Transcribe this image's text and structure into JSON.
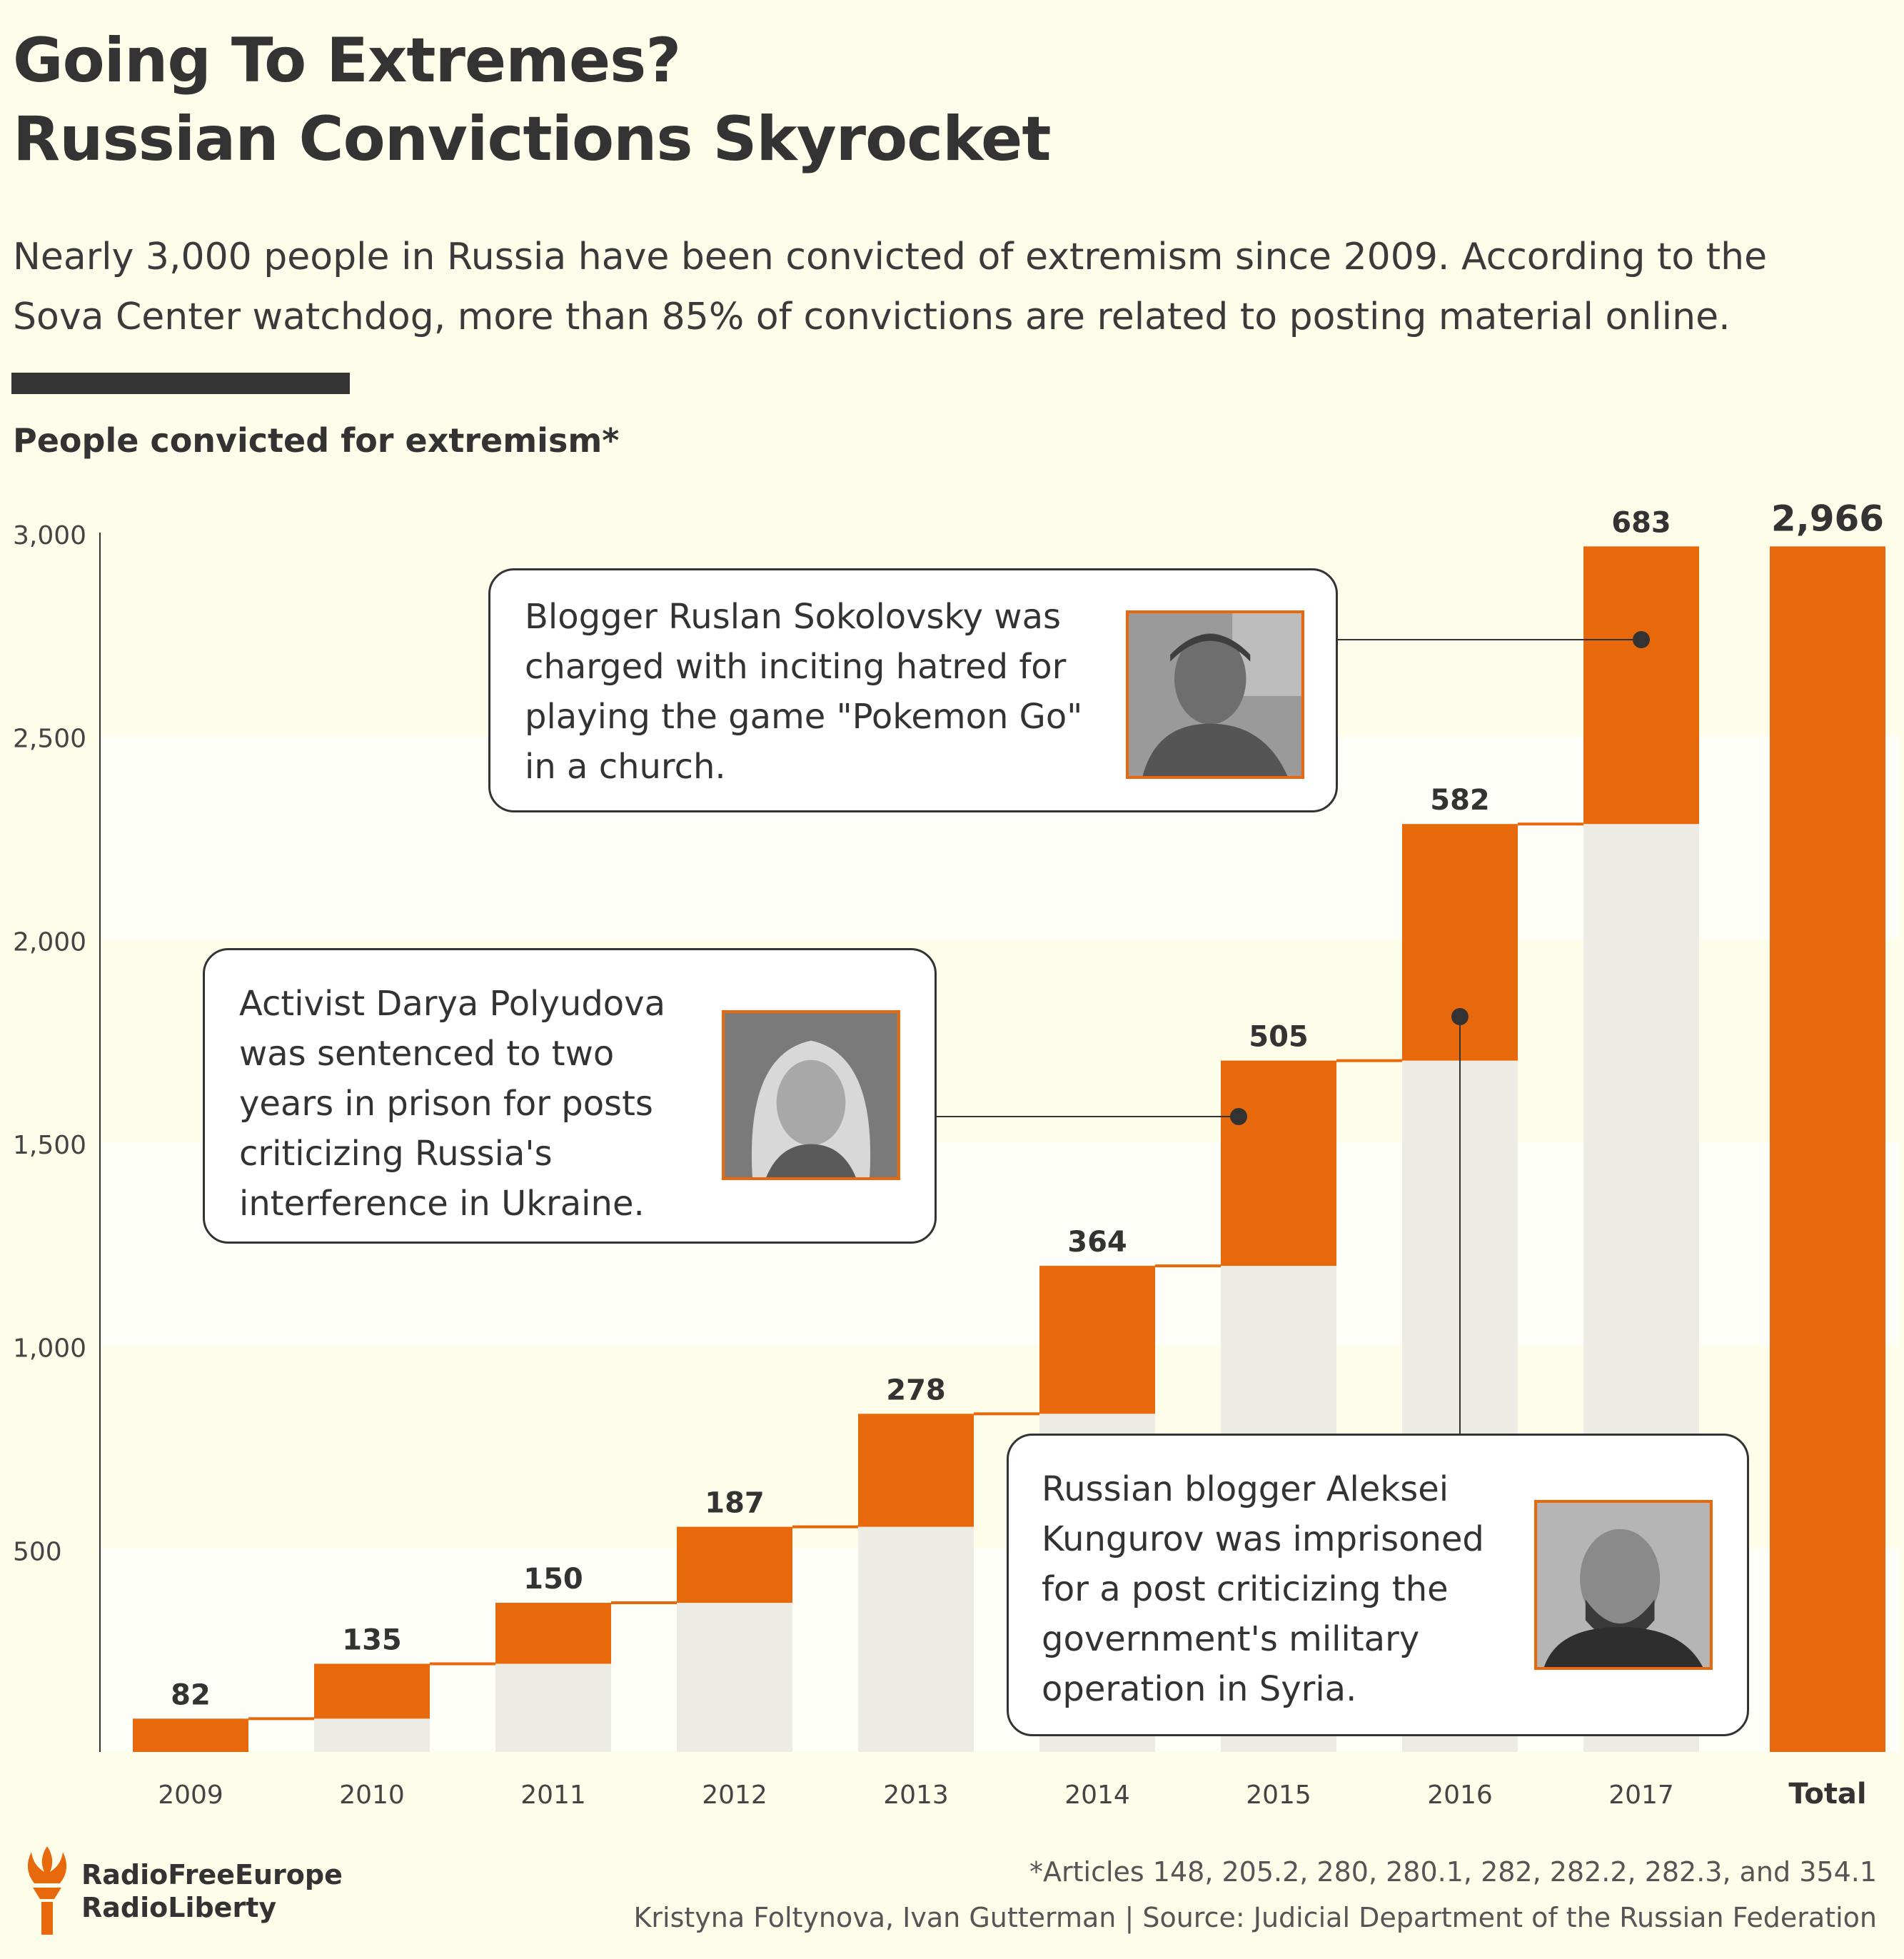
{
  "header": {
    "title_line1": "Going To Extremes?",
    "title_line2": "Russian Convictions Skyrocket",
    "subtitle_line1": "Nearly 3,000 people in Russia have been convicted of extremism since 2009. According to the",
    "subtitle_line2": "Sova Center watchdog, more than 85% of convictions are related to posting material online.",
    "chart_label": "People convicted for extremism*"
  },
  "chart_data": {
    "type": "bar",
    "subtype": "waterfall",
    "title": "People convicted for extremism*",
    "categories": [
      "2009",
      "2010",
      "2011",
      "2012",
      "2013",
      "2014",
      "2015",
      "2016",
      "2017"
    ],
    "values": [
      82,
      135,
      150,
      187,
      278,
      364,
      505,
      582,
      683
    ],
    "value_labels": [
      "82",
      "135",
      "150",
      "187",
      "278",
      "364",
      "505",
      "582",
      "683"
    ],
    "total": {
      "label": "Total",
      "value": 2966,
      "value_label": "2,966"
    },
    "ylim": [
      0,
      3000
    ],
    "yticks": [
      500,
      1000,
      1500,
      2000,
      2500,
      3000
    ],
    "ytick_labels": [
      "500",
      "1,000",
      "1,500",
      "2,000",
      "2,500",
      "3,000"
    ],
    "xlabel": "",
    "ylabel": "",
    "grid": "horizontal bands",
    "colors": {
      "bar": "#e8690b",
      "base": "#ececE4",
      "band_light": "#fdfdea",
      "band_white": "#fefef8"
    }
  },
  "callouts": [
    {
      "id": "sokolovsky",
      "lines": [
        "Blogger Ruslan Sokolovsky was",
        "charged with inciting hatred for",
        "playing the game \"Pokemon Go\"",
        "in a church."
      ],
      "points_to": "2017"
    },
    {
      "id": "polyudova",
      "lines": [
        "Activist Darya Polyudova",
        "was sentenced to two",
        "years in prison for posts",
        "criticizing Russia's",
        "interference in Ukraine."
      ],
      "points_to": "2015"
    },
    {
      "id": "kungurov",
      "lines": [
        "Russian blogger Aleksei",
        "Kungurov was imprisoned",
        "for a post criticizing the",
        "government's military",
        "operation in Syria."
      ],
      "points_to": "2016"
    }
  ],
  "footer": {
    "logo_line1": "RadioFreeEurope",
    "logo_line2": "RadioLiberty",
    "footnote": "*Articles 148, 205.2, 280, 280.1, 282, 282.2, 282.3, and 354.1",
    "credit": "Kristyna Foltynova, Ivan Gutterman | Source: Judicial Department of the Russian Federation"
  }
}
